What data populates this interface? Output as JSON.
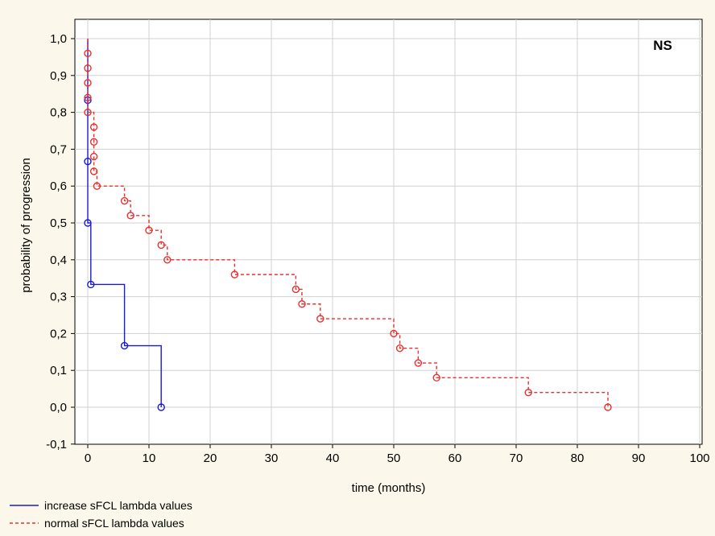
{
  "chart_data": {
    "type": "line",
    "xlabel": "time (months)",
    "ylabel": "probability of progression",
    "xlim": [
      0,
      100
    ],
    "ylim": [
      -0.1,
      1.0
    ],
    "x_ticks": [
      0,
      10,
      20,
      30,
      40,
      50,
      60,
      70,
      80,
      90,
      100
    ],
    "x_tick_labels": [
      "0",
      "10",
      "20",
      "30",
      "40",
      "50",
      "60",
      "70",
      "80",
      "90",
      "100"
    ],
    "y_ticks": [
      -0.1,
      0.0,
      0.1,
      0.2,
      0.3,
      0.4,
      0.5,
      0.6,
      0.7,
      0.8,
      0.9,
      1.0
    ],
    "y_tick_labels": [
      "-0,1",
      "0,0",
      "0,1",
      "0,2",
      "0,3",
      "0,4",
      "0,5",
      "0,6",
      "0,7",
      "0,8",
      "0,9",
      "1,0"
    ],
    "grid": true,
    "annotation": "NS",
    "annotation_position": "top-right",
    "legend_position": "bottom-left",
    "series": [
      {
        "name": "increase sFCL lambda values",
        "color": "#1a1ad6",
        "style": "solid",
        "steps": [
          [
            0,
            1.0
          ],
          [
            0,
            0.833
          ],
          [
            0,
            0.667
          ],
          [
            0,
            0.5
          ],
          [
            0.5,
            0.333
          ],
          [
            6,
            0.167
          ],
          [
            12,
            0.0
          ]
        ],
        "markers": [
          [
            0,
            0.833
          ],
          [
            0,
            0.667
          ],
          [
            0,
            0.5
          ],
          [
            0.5,
            0.333
          ],
          [
            6,
            0.167
          ],
          [
            12,
            0.0
          ]
        ]
      },
      {
        "name": "normal sFCL lambda values",
        "color": "#e8302e",
        "style": "dashed",
        "steps": [
          [
            0,
            1.0
          ],
          [
            0,
            0.96
          ],
          [
            0,
            0.92
          ],
          [
            0,
            0.88
          ],
          [
            0,
            0.84
          ],
          [
            0,
            0.8
          ],
          [
            1,
            0.76
          ],
          [
            1,
            0.72
          ],
          [
            1,
            0.68
          ],
          [
            1,
            0.64
          ],
          [
            1.5,
            0.6
          ],
          [
            6,
            0.56
          ],
          [
            7,
            0.52
          ],
          [
            10,
            0.48
          ],
          [
            12,
            0.44
          ],
          [
            13,
            0.4
          ],
          [
            24,
            0.36
          ],
          [
            34,
            0.32
          ],
          [
            35,
            0.28
          ],
          [
            38,
            0.24
          ],
          [
            50,
            0.2
          ],
          [
            51,
            0.16
          ],
          [
            54,
            0.12
          ],
          [
            57,
            0.08
          ],
          [
            72,
            0.04
          ],
          [
            85,
            0.0
          ]
        ],
        "markers": [
          [
            0,
            0.96
          ],
          [
            0,
            0.92
          ],
          [
            0,
            0.88
          ],
          [
            0,
            0.84
          ],
          [
            0,
            0.8
          ],
          [
            1,
            0.76
          ],
          [
            1,
            0.72
          ],
          [
            1,
            0.68
          ],
          [
            1,
            0.64
          ],
          [
            1.5,
            0.6
          ],
          [
            6,
            0.56
          ],
          [
            7,
            0.52
          ],
          [
            10,
            0.48
          ],
          [
            12,
            0.44
          ],
          [
            13,
            0.4
          ],
          [
            24,
            0.36
          ],
          [
            34,
            0.32
          ],
          [
            35,
            0.28
          ],
          [
            38,
            0.24
          ],
          [
            50,
            0.2
          ],
          [
            51,
            0.16
          ],
          [
            54,
            0.12
          ],
          [
            57,
            0.08
          ],
          [
            72,
            0.04
          ],
          [
            85,
            0.0
          ]
        ]
      }
    ]
  }
}
